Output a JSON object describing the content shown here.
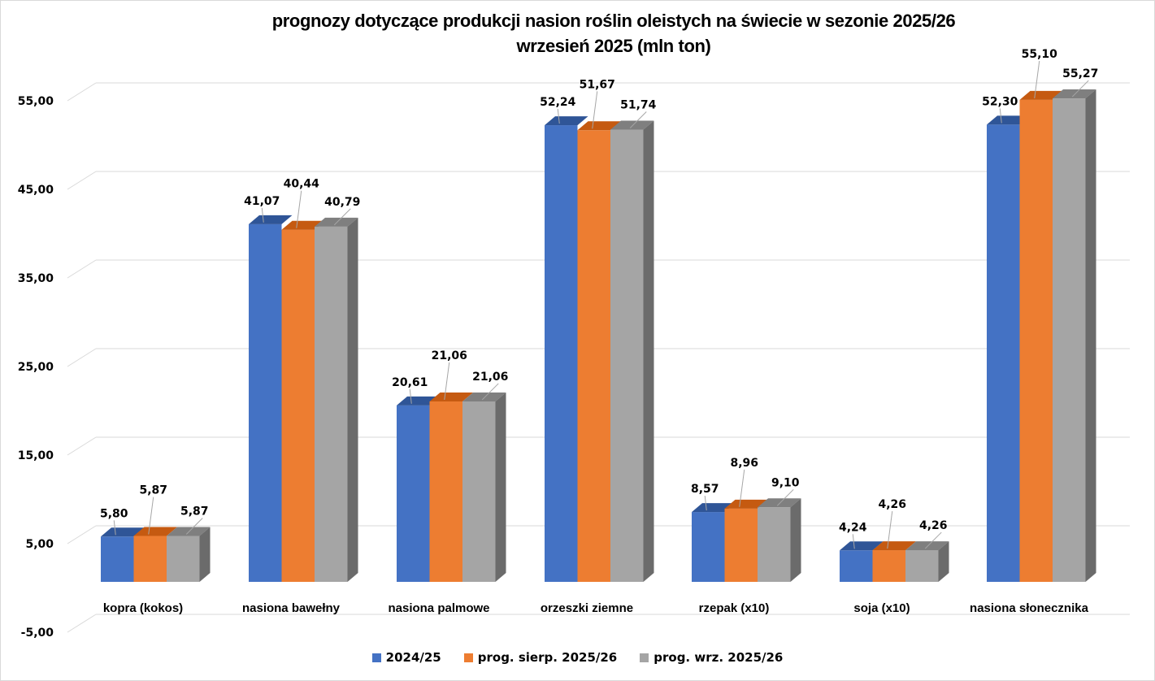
{
  "chart_data": {
    "type": "bar",
    "variant": "3d-clustered-column",
    "title": "prognozy dotyczące produkcji nasion roślin oleistych na świecie w sezonie 2025/26",
    "subtitle": "wrzesień 2025 (mln ton)",
    "xlabel": "",
    "ylabel": "",
    "ylim": [
      -5,
      55
    ],
    "yticks": [
      -5,
      5,
      15,
      25,
      35,
      45,
      55
    ],
    "ytick_labels": [
      "-5,00",
      "5,00",
      "15,00",
      "25,00",
      "35,00",
      "45,00",
      "55,00"
    ],
    "grid": true,
    "legend_position": "bottom",
    "categories": [
      "kopra (kokos)",
      "nasiona bawełny",
      "nasiona palmowe",
      "orzeszki ziemne",
      "rzepak (x10)",
      "soja (x10)",
      "nasiona słonecznika"
    ],
    "series": [
      {
        "name": "2024/25",
        "color": "#4472c4",
        "top_color": "#2f5597",
        "side_color": "#2f528f",
        "values": [
          5.8,
          41.07,
          20.61,
          52.24,
          8.57,
          4.24,
          52.3
        ],
        "labels": [
          "5,80",
          "41,07",
          "20,61",
          "52,24",
          "8,57",
          "4,24",
          "52,30"
        ]
      },
      {
        "name": "prog. sierp. 2025/26",
        "color": "#ed7d31",
        "top_color": "#c55a11",
        "side_color": "#ae5a21",
        "values": [
          5.87,
          40.44,
          21.06,
          51.67,
          8.96,
          4.26,
          55.1
        ],
        "labels": [
          "5,87",
          "40,44",
          "21,06",
          "51,67",
          "8,96",
          "4,26",
          "55,10"
        ]
      },
      {
        "name": "prog. wrz. 2025/26",
        "color": "#a5a5a5",
        "top_color": "#7f7f7f",
        "side_color": "#6b6b6b",
        "values": [
          5.87,
          40.79,
          21.06,
          51.74,
          9.1,
          4.26,
          55.27
        ],
        "labels": [
          "5,87",
          "40,79",
          "21,06",
          "51,74",
          "9,10",
          "4,26",
          "55,27"
        ]
      }
    ]
  }
}
